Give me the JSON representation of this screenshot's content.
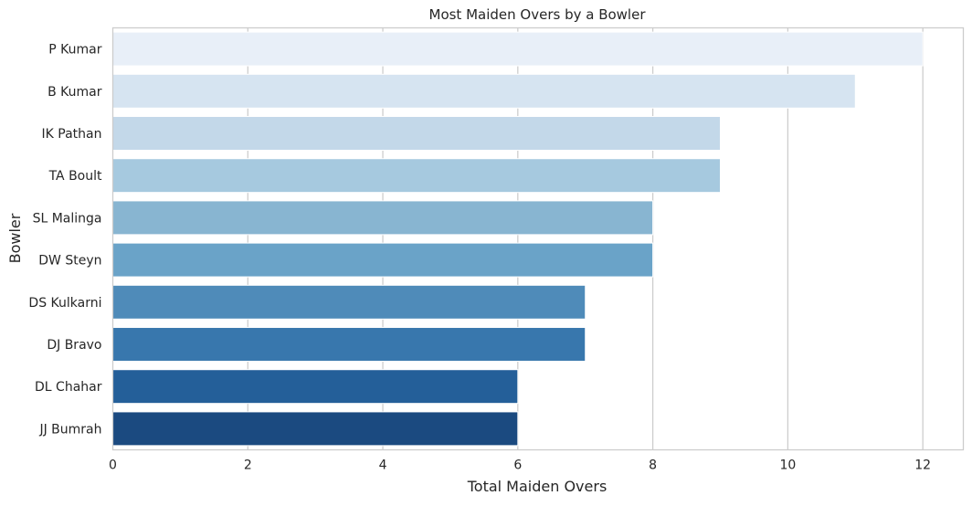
{
  "chart_data": {
    "type": "bar",
    "orientation": "horizontal",
    "title": "Most Maiden Overs by a Bowler",
    "xlabel": "Total Maiden Overs",
    "ylabel": "Bowler",
    "xlim": [
      0,
      12.6
    ],
    "xticks": [
      0,
      2,
      4,
      6,
      8,
      10,
      12
    ],
    "grid": true,
    "categories": [
      "P Kumar",
      "B Kumar",
      "IK Pathan",
      "TA Boult",
      "SL Malinga",
      "DW Steyn",
      "DS Kulkarni",
      "DJ Bravo",
      "DL Chahar",
      "JJ Bumrah"
    ],
    "values": [
      12,
      11,
      9,
      9,
      8,
      8,
      7,
      7,
      6,
      6
    ],
    "colors": [
      "#e8eff8",
      "#d6e4f1",
      "#c3d8e9",
      "#a6c9df",
      "#88b5d1",
      "#6aa3c8",
      "#4f8bb9",
      "#3877ad",
      "#245f99",
      "#1b4a80"
    ]
  }
}
